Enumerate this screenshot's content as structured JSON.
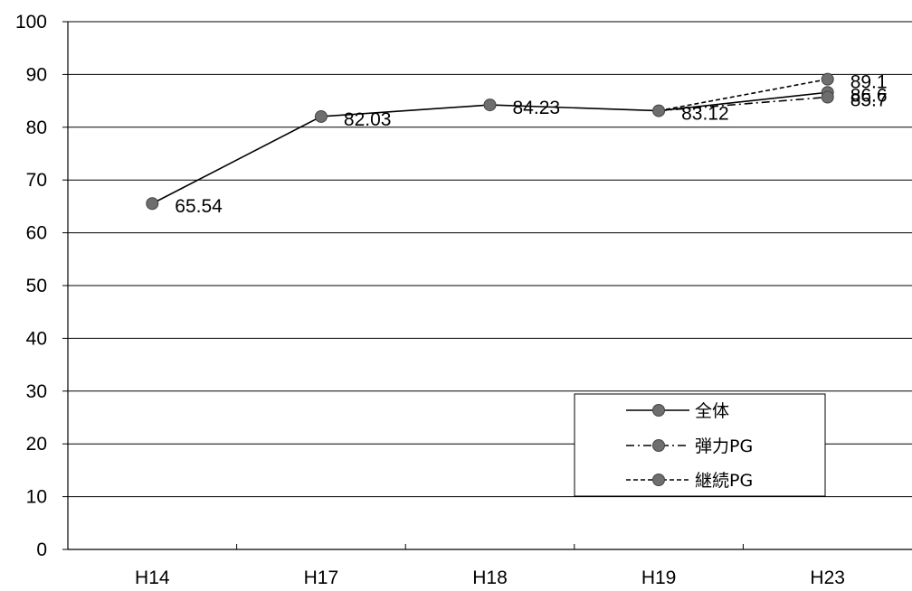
{
  "chart_data": {
    "type": "line",
    "title": "",
    "xlabel": "",
    "ylabel": "",
    "categories": [
      "H14",
      "H17",
      "H18",
      "H19",
      "H23"
    ],
    "ylim": [
      0,
      100
    ],
    "yticks": [
      "0",
      "10",
      "20",
      "30",
      "40",
      "50",
      "60",
      "70",
      "80",
      "90",
      "100"
    ],
    "grid": true,
    "legend_position": "bottom-right",
    "series": [
      {
        "name": "全体",
        "line_style": "solid",
        "values": [
          65.54,
          82.03,
          84.23,
          83.12,
          86.6
        ],
        "labels": [
          "65.54",
          "82.03",
          "84.23",
          "83.12",
          "86.6"
        ]
      },
      {
        "name": "弾力PG",
        "line_style": "dash-dot",
        "values": [
          null,
          null,
          null,
          83.12,
          85.7
        ],
        "labels": [
          null,
          null,
          null,
          null,
          "85.7"
        ]
      },
      {
        "name": "継続PG",
        "line_style": "dashed",
        "values": [
          null,
          null,
          null,
          83.12,
          89.1
        ],
        "labels": [
          null,
          null,
          null,
          null,
          "89.1"
        ]
      }
    ],
    "colors": {
      "line": "#000000",
      "marker": "#6e6e6e",
      "grid": "#000000"
    }
  }
}
